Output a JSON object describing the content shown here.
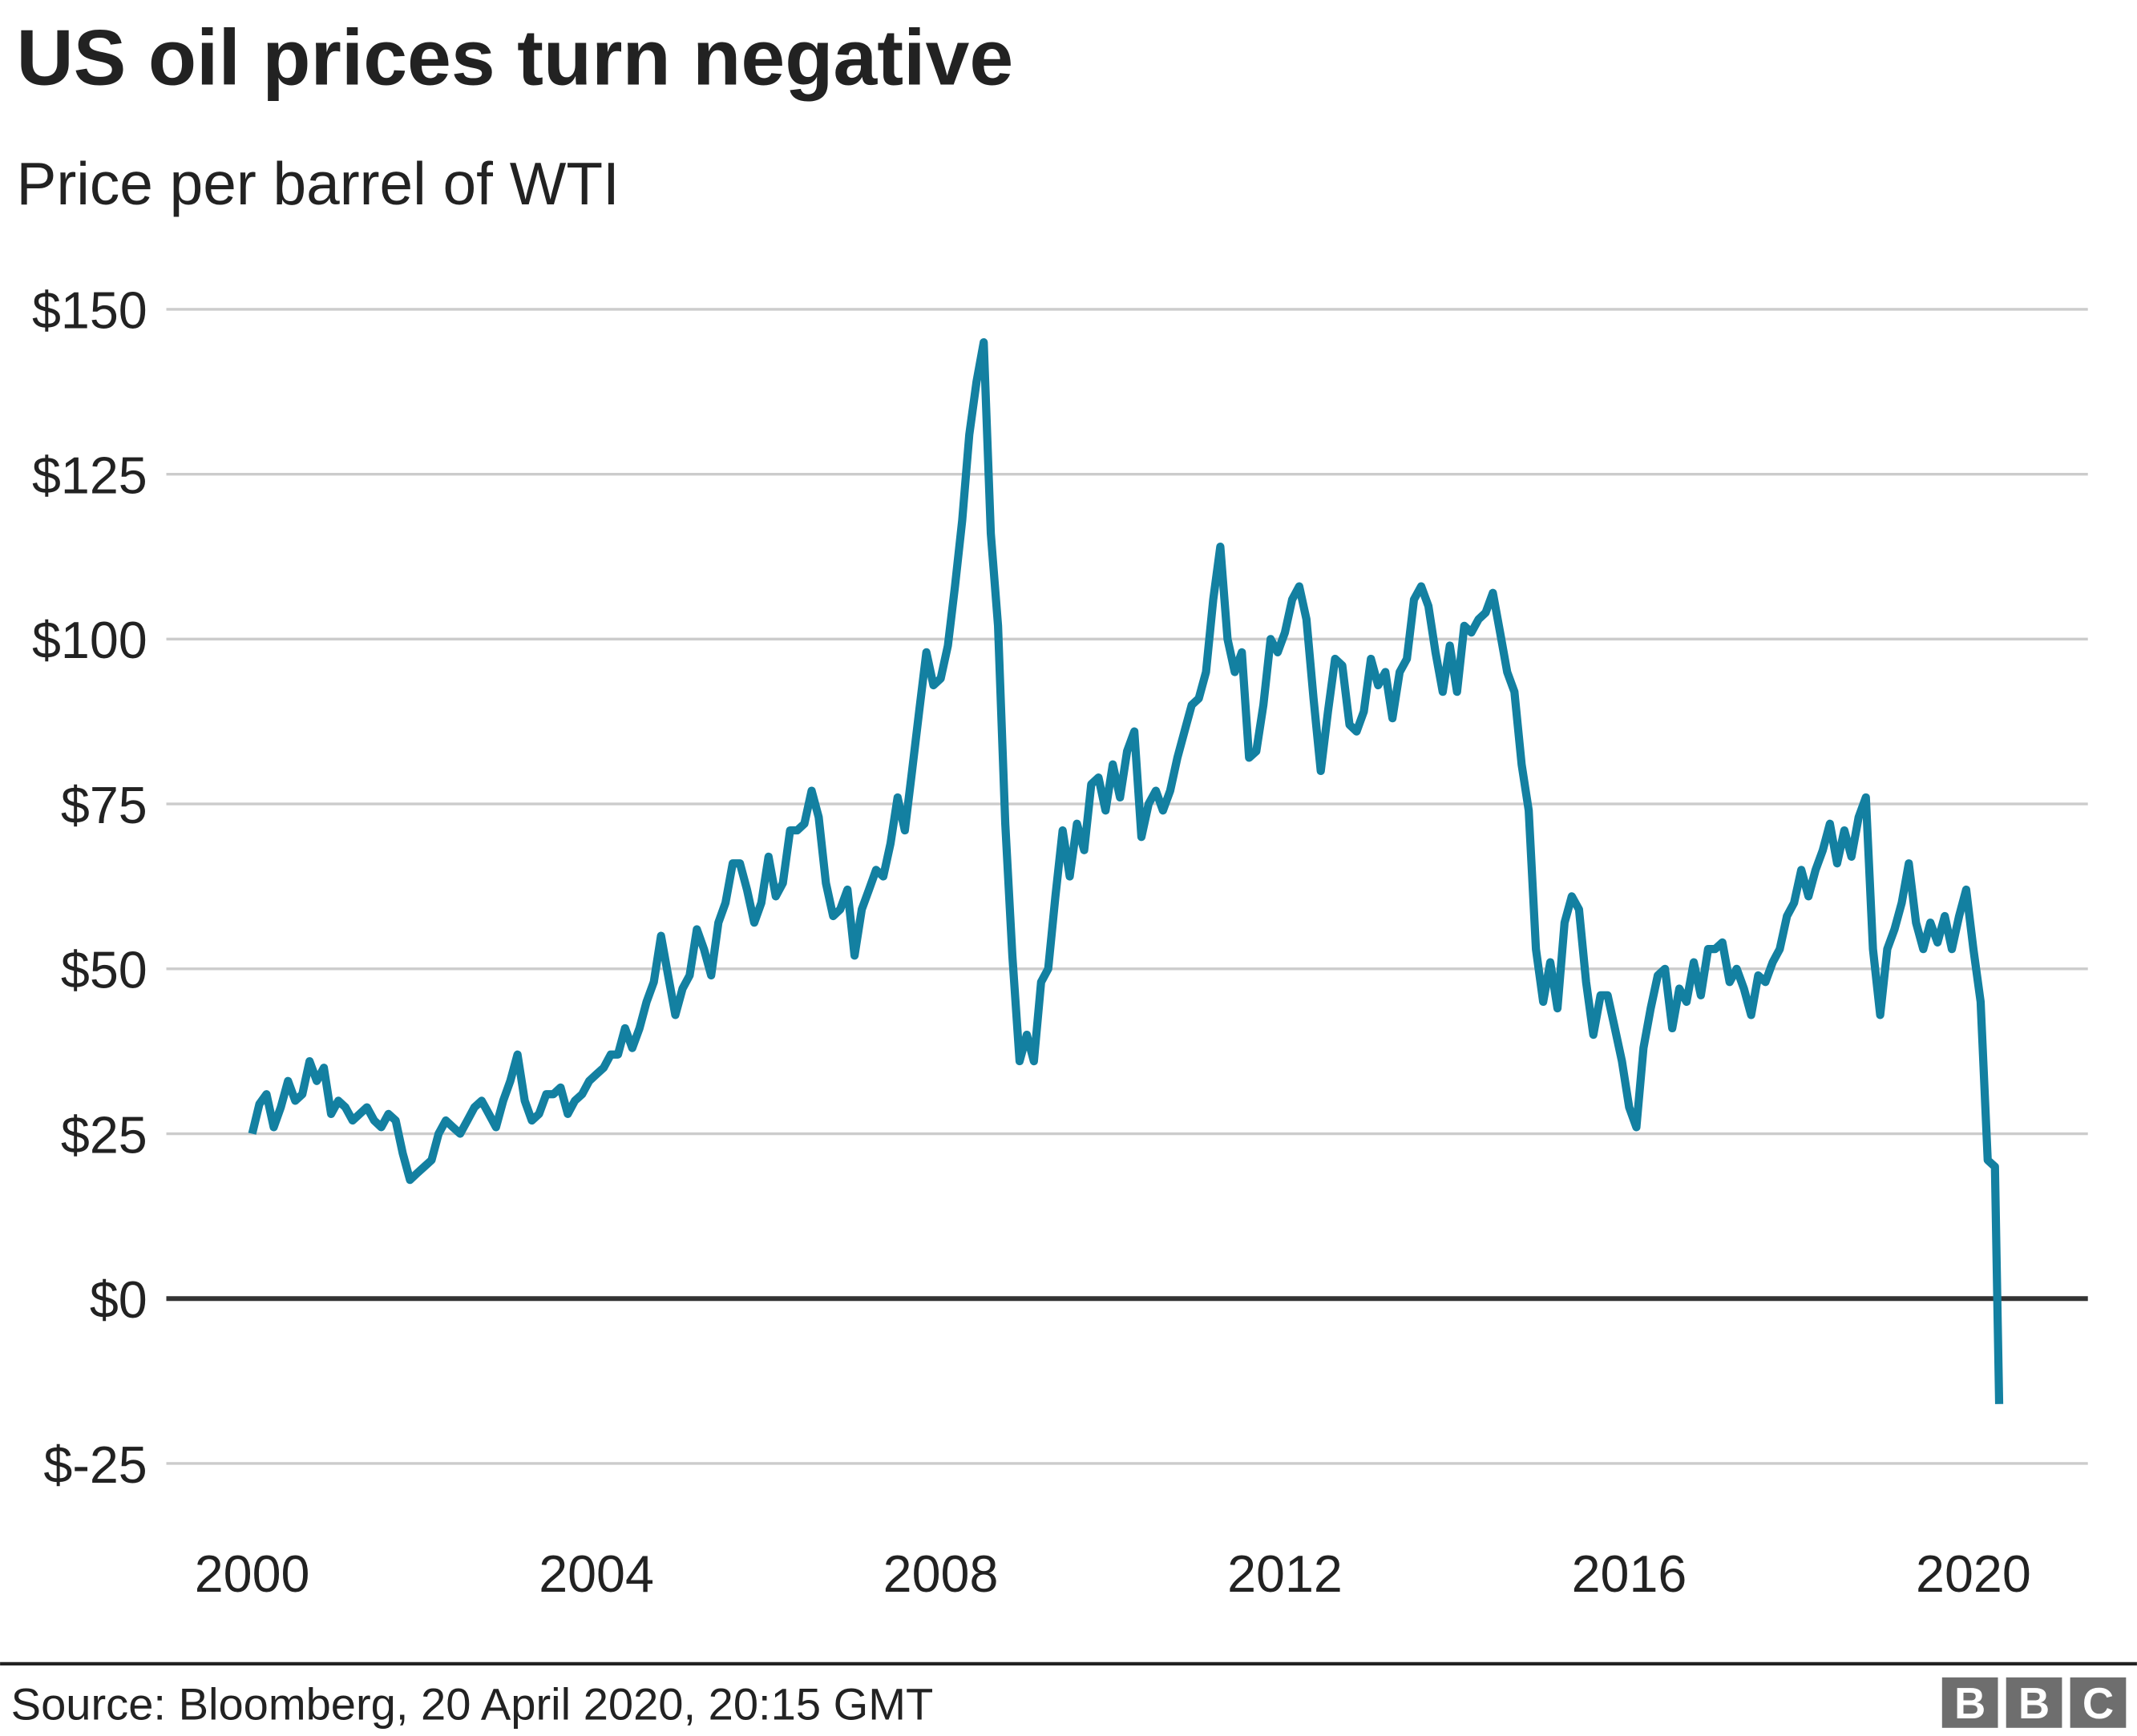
{
  "chart_data": {
    "type": "line",
    "title": "US oil prices turn negative",
    "subtitle": "Price per barrel of WTI",
    "xlabel": "",
    "ylabel": "",
    "source": "Source: Bloomberg, 20 April 2020, 20:15 GMT",
    "logo": "BBC",
    "ylim": [
      -25,
      150
    ],
    "xlim": [
      "2000-01",
      "2020-04"
    ],
    "grid": true,
    "legend": "none",
    "line_color": "#1380A1",
    "yticks": [
      {
        "value": 150,
        "label": "$150"
      },
      {
        "value": 125,
        "label": "$125"
      },
      {
        "value": 100,
        "label": "$100"
      },
      {
        "value": 75,
        "label": "$75"
      },
      {
        "value": 50,
        "label": "$50"
      },
      {
        "value": 25,
        "label": "$25"
      },
      {
        "value": 0,
        "label": "$0"
      },
      {
        "value": -25,
        "label": "$-25"
      }
    ],
    "xticks": [
      {
        "value": 2000,
        "label": "2000"
      },
      {
        "value": 2004,
        "label": "2004"
      },
      {
        "value": 2008,
        "label": "2008"
      },
      {
        "value": 2012,
        "label": "2012"
      },
      {
        "value": 2016,
        "label": "2016"
      },
      {
        "value": 2020,
        "label": "2020"
      }
    ],
    "series": [
      {
        "x": [
          "2000-01",
          "2000-02",
          "2000-03",
          "2000-04",
          "2000-05",
          "2000-06",
          "2000-07",
          "2000-08",
          "2000-09",
          "2000-10",
          "2000-11",
          "2000-12",
          "2001-01",
          "2001-02",
          "2001-03",
          "2001-04",
          "2001-05",
          "2001-06",
          "2001-07",
          "2001-08",
          "2001-09",
          "2001-10",
          "2001-11",
          "2001-12",
          "2002-01",
          "2002-02",
          "2002-03",
          "2002-04",
          "2002-05",
          "2002-06",
          "2002-07",
          "2002-08",
          "2002-09",
          "2002-10",
          "2002-11",
          "2002-12",
          "2003-01",
          "2003-02",
          "2003-03",
          "2003-04",
          "2003-05",
          "2003-06",
          "2003-07",
          "2003-08",
          "2003-09",
          "2003-10",
          "2003-11",
          "2003-12",
          "2004-01",
          "2004-02",
          "2004-03",
          "2004-04",
          "2004-05",
          "2004-06",
          "2004-07",
          "2004-08",
          "2004-09",
          "2004-10",
          "2004-11",
          "2004-12",
          "2005-01",
          "2005-02",
          "2005-03",
          "2005-04",
          "2005-05",
          "2005-06",
          "2005-07",
          "2005-08",
          "2005-09",
          "2005-10",
          "2005-11",
          "2005-12",
          "2006-01",
          "2006-02",
          "2006-03",
          "2006-04",
          "2006-05",
          "2006-06",
          "2006-07",
          "2006-08",
          "2006-09",
          "2006-10",
          "2006-11",
          "2006-12",
          "2007-01",
          "2007-02",
          "2007-03",
          "2007-04",
          "2007-05",
          "2007-06",
          "2007-07",
          "2007-08",
          "2007-09",
          "2007-10",
          "2007-11",
          "2007-12",
          "2008-01",
          "2008-02",
          "2008-03",
          "2008-04",
          "2008-05",
          "2008-06",
          "2008-07",
          "2008-08",
          "2008-09",
          "2008-10",
          "2008-11",
          "2008-12",
          "2009-01",
          "2009-02",
          "2009-03",
          "2009-04",
          "2009-05",
          "2009-06",
          "2009-07",
          "2009-08",
          "2009-09",
          "2009-10",
          "2009-11",
          "2009-12",
          "2010-01",
          "2010-02",
          "2010-03",
          "2010-04",
          "2010-05",
          "2010-06",
          "2010-07",
          "2010-08",
          "2010-09",
          "2010-10",
          "2010-11",
          "2010-12",
          "2011-01",
          "2011-02",
          "2011-03",
          "2011-04",
          "2011-05",
          "2011-06",
          "2011-07",
          "2011-08",
          "2011-09",
          "2011-10",
          "2011-11",
          "2011-12",
          "2012-01",
          "2012-02",
          "2012-03",
          "2012-04",
          "2012-05",
          "2012-06",
          "2012-07",
          "2012-08",
          "2012-09",
          "2012-10",
          "2012-11",
          "2012-12",
          "2013-01",
          "2013-02",
          "2013-03",
          "2013-04",
          "2013-05",
          "2013-06",
          "2013-07",
          "2013-08",
          "2013-09",
          "2013-10",
          "2013-11",
          "2013-12",
          "2014-01",
          "2014-02",
          "2014-03",
          "2014-04",
          "2014-05",
          "2014-06",
          "2014-07",
          "2014-08",
          "2014-09",
          "2014-10",
          "2014-11",
          "2014-12",
          "2015-01",
          "2015-02",
          "2015-03",
          "2015-04",
          "2015-05",
          "2015-06",
          "2015-07",
          "2015-08",
          "2015-09",
          "2015-10",
          "2015-11",
          "2015-12",
          "2016-01",
          "2016-02",
          "2016-03",
          "2016-04",
          "2016-05",
          "2016-06",
          "2016-07",
          "2016-08",
          "2016-09",
          "2016-10",
          "2016-11",
          "2016-12",
          "2017-01",
          "2017-02",
          "2017-03",
          "2017-04",
          "2017-05",
          "2017-06",
          "2017-07",
          "2017-08",
          "2017-09",
          "2017-10",
          "2017-11",
          "2017-12",
          "2018-01",
          "2018-02",
          "2018-03",
          "2018-04",
          "2018-05",
          "2018-06",
          "2018-07",
          "2018-08",
          "2018-09",
          "2018-10",
          "2018-11",
          "2018-12",
          "2019-01",
          "2019-02",
          "2019-03",
          "2019-04",
          "2019-05",
          "2019-06",
          "2019-07",
          "2019-08",
          "2019-09",
          "2019-10",
          "2019-11",
          "2019-12",
          "2020-01",
          "2020-02",
          "2020-03",
          "2020-04",
          "2020-04"
        ],
        "values": [
          25,
          29.5,
          31,
          26,
          29,
          33,
          30,
          31,
          36,
          33,
          35,
          28,
          30,
          29,
          27,
          28,
          29,
          27,
          26,
          28,
          27,
          22,
          18,
          19,
          20,
          21,
          25,
          27,
          26,
          25,
          27,
          29,
          30,
          28,
          26,
          30,
          33,
          37,
          30,
          27,
          28,
          31,
          31,
          32,
          28,
          30,
          31,
          33,
          34,
          35,
          37,
          37,
          41,
          38,
          41,
          45,
          48,
          55,
          49,
          43,
          47,
          49,
          56,
          53,
          49,
          57,
          60,
          66,
          66,
          62,
          57,
          60,
          67,
          61,
          63,
          71,
          71,
          72,
          77,
          73,
          63,
          58,
          59,
          62,
          52,
          59,
          62,
          65,
          64,
          69,
          76,
          71,
          80,
          89,
          98,
          93,
          94,
          99,
          108,
          118,
          131,
          139,
          145,
          116,
          102,
          72,
          52,
          36,
          40,
          36,
          48,
          50,
          61,
          71,
          64,
          72,
          68,
          78,
          79,
          74,
          81,
          76,
          83,
          86,
          70,
          75,
          77,
          74,
          77,
          82,
          86,
          90,
          91,
          95,
          106,
          114,
          100,
          95,
          98,
          82,
          83,
          90,
          100,
          98,
          101,
          106,
          108,
          103,
          91,
          80,
          89,
          97,
          96,
          87,
          86,
          89,
          97,
          93,
          95,
          88,
          95,
          97,
          106,
          108,
          105,
          98,
          92,
          99,
          92,
          102,
          101,
          103,
          104,
          107,
          101,
          95,
          92,
          81,
          74,
          53,
          45,
          51,
          44,
          57,
          61,
          59,
          48,
          40,
          46,
          46,
          41,
          36,
          29,
          26,
          38,
          44,
          49,
          50,
          41,
          47,
          45,
          51,
          46,
          53,
          53,
          54,
          48,
          50,
          47,
          43,
          49,
          48,
          51,
          53,
          58,
          60,
          65,
          61,
          65,
          68,
          72,
          66,
          71,
          67,
          73,
          76,
          53,
          43,
          53,
          56,
          60,
          66,
          57,
          53,
          57,
          54,
          58,
          53,
          58,
          62,
          53,
          45,
          21,
          20,
          -16
        ]
      }
    ]
  }
}
